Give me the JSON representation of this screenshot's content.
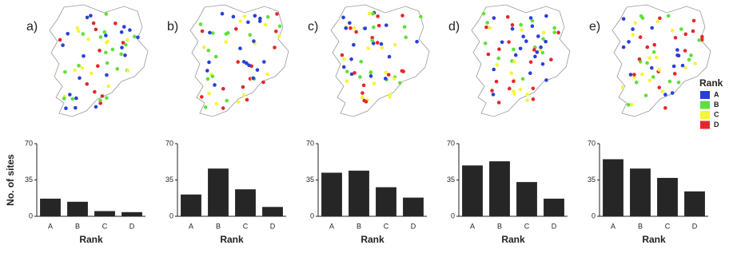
{
  "maps": [
    {
      "label": "a)"
    },
    {
      "label": "b)"
    },
    {
      "label": "c)"
    },
    {
      "label": "d)"
    },
    {
      "label": "e)"
    }
  ],
  "legend": {
    "title": "Rank",
    "items": [
      {
        "name": "A",
        "color": "#2a3fd8"
      },
      {
        "name": "B",
        "color": "#5fe03a"
      },
      {
        "name": "C",
        "color": "#f5f53a"
      },
      {
        "name": "D",
        "color": "#e8262a"
      }
    ]
  },
  "chart_data": [
    {
      "type": "bar",
      "ylabel": "No. of sites",
      "xlabel": "Rank",
      "categories": [
        "A",
        "B",
        "C",
        "D"
      ],
      "values": [
        17,
        14,
        5,
        4
      ],
      "color": "#262626",
      "ylim": [
        0,
        70
      ],
      "yticks": [
        0,
        35,
        70
      ]
    },
    {
      "type": "bar",
      "xlabel": "Rank",
      "categories": [
        "A",
        "B",
        "C",
        "D"
      ],
      "values": [
        21,
        46,
        26,
        9
      ],
      "color": "#262626",
      "ylim": [
        0,
        70
      ],
      "yticks": [
        0,
        35,
        70
      ]
    },
    {
      "type": "bar",
      "xlabel": "Rank",
      "categories": [
        "A",
        "B",
        "C",
        "D"
      ],
      "values": [
        42,
        44,
        28,
        18
      ],
      "color": "#262626",
      "ylim": [
        0,
        70
      ],
      "yticks": [
        0,
        35,
        70
      ]
    },
    {
      "type": "bar",
      "xlabel": "Rank",
      "categories": [
        "A",
        "B",
        "C",
        "D"
      ],
      "values": [
        49,
        53,
        33,
        17
      ],
      "color": "#262626",
      "ylim": [
        0,
        70
      ],
      "yticks": [
        0,
        35,
        70
      ]
    },
    {
      "type": "bar",
      "xlabel": "Rank",
      "categories": [
        "A",
        "B",
        "C",
        "D"
      ],
      "values": [
        55,
        46,
        37,
        24
      ],
      "color": "#262626",
      "ylim": [
        0,
        70
      ],
      "yticks": [
        0,
        35,
        70
      ]
    }
  ]
}
